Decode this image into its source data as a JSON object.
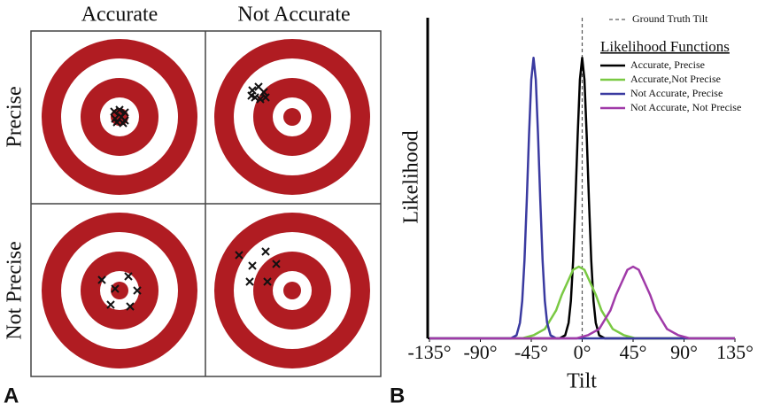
{
  "panel_a": {
    "label": "A",
    "columns": [
      "Accurate",
      "Not Accurate"
    ],
    "rows": [
      "Precise",
      "Not Precise"
    ]
  },
  "chart_data": {
    "type": "line",
    "panel_label": "B",
    "xlabel": "Tilt",
    "ylabel": "Likelihood",
    "xlim": [
      -135,
      135
    ],
    "ylim": [
      0,
      1
    ],
    "xticks": [
      {
        "value": -135,
        "label": "-135°"
      },
      {
        "value": -90,
        "label": "-90°"
      },
      {
        "value": -45,
        "label": "-45°"
      },
      {
        "value": 0,
        "label": "0°"
      },
      {
        "value": 45,
        "label": "45°"
      },
      {
        "value": 90,
        "label": "90°"
      },
      {
        "value": 135,
        "label": "135°"
      }
    ],
    "reference_line": {
      "name": "Ground Truth Tilt",
      "x": 0
    },
    "legend_title": "Likelihood Functions",
    "series": [
      {
        "name": "Accurate, Precise",
        "color": "#000000",
        "x": [
          -135,
          -20,
          -15,
          -12,
          -10,
          -8,
          -6,
          -4,
          -2,
          0,
          2,
          4,
          6,
          8,
          10,
          12,
          15,
          20,
          135
        ],
        "values": [
          0,
          0,
          0.01,
          0.05,
          0.12,
          0.25,
          0.44,
          0.65,
          0.83,
          0.9,
          0.83,
          0.65,
          0.44,
          0.25,
          0.12,
          0.05,
          0.01,
          0,
          0
        ]
      },
      {
        "name": "Accurate,Not Precise",
        "color": "#7ac943",
        "x": [
          -135,
          -53,
          -43,
          -33,
          -28,
          -23,
          -18,
          -13,
          -8,
          -3,
          2,
          7,
          12,
          17,
          22,
          27,
          37,
          47,
          135
        ],
        "values": [
          0,
          0,
          0.01,
          0.03,
          0.06,
          0.09,
          0.14,
          0.18,
          0.22,
          0.23,
          0.22,
          0.18,
          0.14,
          0.09,
          0.06,
          0.03,
          0.01,
          0,
          0
        ]
      },
      {
        "name": "Not Accurate, Precise",
        "color": "#3a3aa0",
        "x": [
          -135,
          -63,
          -58,
          -55,
          -53,
          -51,
          -49,
          -47,
          -45,
          -43,
          -41,
          -39,
          -37,
          -35,
          -33,
          -31,
          -28,
          -23,
          135
        ],
        "values": [
          0,
          0,
          0.01,
          0.05,
          0.12,
          0.25,
          0.44,
          0.65,
          0.83,
          0.9,
          0.83,
          0.65,
          0.44,
          0.25,
          0.12,
          0.05,
          0.01,
          0,
          0
        ]
      },
      {
        "name": "Not Accurate, Not Precise",
        "color": "#a03aa8",
        "x": [
          -135,
          -5,
          5,
          15,
          20,
          25,
          30,
          35,
          40,
          45,
          50,
          55,
          60,
          65,
          70,
          75,
          85,
          95,
          135
        ],
        "values": [
          0,
          0,
          0.01,
          0.03,
          0.06,
          0.09,
          0.14,
          0.18,
          0.22,
          0.23,
          0.22,
          0.18,
          0.14,
          0.09,
          0.06,
          0.03,
          0.01,
          0,
          0
        ]
      }
    ]
  }
}
